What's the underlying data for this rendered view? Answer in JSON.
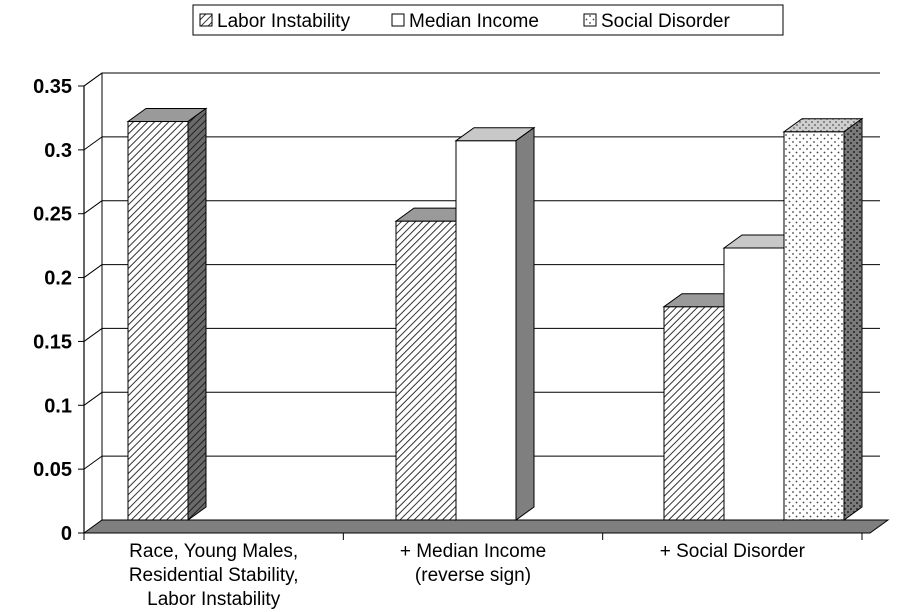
{
  "chart_data": {
    "type": "bar",
    "categories": [
      [
        "Race, Young Males,",
        "Residential Stability,",
        "Labor Instability"
      ],
      [
        "+ Median Income",
        "(reverse sign)"
      ],
      [
        "+ Social Disorder"
      ]
    ],
    "series": [
      {
        "name": "Labor Instability",
        "values": [
          0.312,
          0.234,
          0.167
        ],
        "pattern": "hatch"
      },
      {
        "name": "Median Income",
        "values": [
          null,
          0.297,
          0.213
        ],
        "pattern": "solid-white"
      },
      {
        "name": "Social Disorder",
        "values": [
          null,
          null,
          0.304
        ],
        "pattern": "dots"
      }
    ],
    "y_ticks": [
      "0",
      "0.05",
      "0.1",
      "0.15",
      "0.2",
      "0.25",
      "0.3",
      "0.35"
    ],
    "ylim": [
      0,
      0.35
    ],
    "grid": true,
    "legend_position": "top-center",
    "title": "",
    "xlabel": "",
    "ylabel": ""
  }
}
